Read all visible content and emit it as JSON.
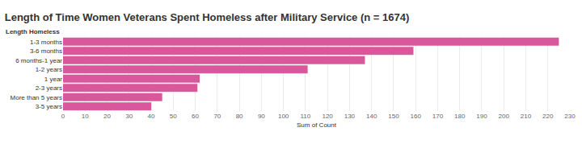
{
  "chart_data": {
    "type": "bar",
    "orientation": "horizontal",
    "title": "Length of Time Women Veterans Spent Homeless after Military Service (n = 1674)",
    "x_label": "Sum of Count",
    "y_label": "Length Homeless",
    "categories": [
      "1-3 months",
      "3-6 months",
      "6 months-1 year",
      "1-2 years",
      "1 year",
      "2-3 years",
      "More than 5 years",
      "3-5 years"
    ],
    "values": [
      225,
      159,
      137,
      111,
      62,
      61,
      45,
      40
    ],
    "color": "#d9579b",
    "xlim": [
      0,
      230
    ],
    "xticks": [
      0,
      10,
      20,
      30,
      40,
      50,
      60,
      70,
      80,
      90,
      100,
      110,
      120,
      130,
      140,
      150,
      160,
      170,
      180,
      190,
      200,
      210,
      220,
      230
    ],
    "grid": true
  }
}
